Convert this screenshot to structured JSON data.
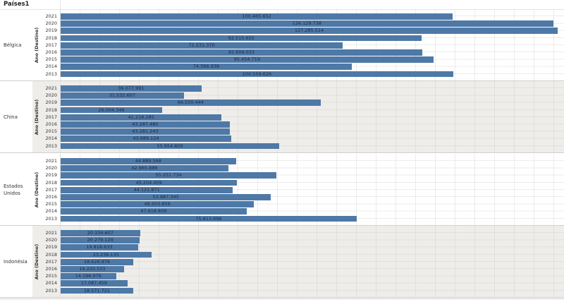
{
  "header": {
    "title": "Países1"
  },
  "axis": {
    "row_title": "Ano (Destino)"
  },
  "colors": {
    "bar": "#4e79a7",
    "label": "#1d2740",
    "band": "#efedea"
  },
  "chart_data": {
    "type": "bar",
    "orientation": "horizontal",
    "title": "Países1",
    "xlabel": "",
    "ylabel": "Ano (Destino)",
    "xlim": [
      0,
      128500000
    ],
    "grid": true,
    "legend": null,
    "categories": [
      "2021",
      "2020",
      "2019",
      "2018",
      "2017",
      "2016",
      "2015",
      "2014",
      "2013"
    ],
    "panels": [
      {
        "country": "Bélgica",
        "values": [
          100465652,
          126129738,
          127285514,
          92515655,
          72231370,
          92609033,
          95454719,
          74566938,
          100559626
        ],
        "labels": [
          "100.465.652",
          "126.129.738",
          "127.285.514",
          "92.515.655",
          "72.231.370",
          "92.609.033",
          "95.454.719",
          "74.566.938",
          "100.559.626"
        ]
      },
      {
        "country": "China",
        "values": [
          36077991,
          31532607,
          66550444,
          26004346,
          41218285,
          43287480,
          43281243,
          43689124,
          55954809
        ],
        "labels": [
          "36.077.991",
          "31.532.607",
          "66.550.444",
          "26.004.346",
          "41.218.285",
          "43.287.480",
          "43.281.243",
          "43.689.124",
          "55.954.809"
        ]
      },
      {
        "country": "Estados Unidos",
        "values": [
          44889568,
          42965886,
          55251734,
          45204459,
          44121871,
          53887345,
          49503856,
          47618809,
          75813696
        ],
        "labels": [
          "44.889.568",
          "42.965.886",
          "55.251.734",
          "45.204.459",
          "44.121.871",
          "53.887.345",
          "49.503.856",
          "47.618.809",
          "75.813.696"
        ]
      },
      {
        "country": "Indonésia",
        "values": [
          20334607,
          20279129,
          19818633,
          23236135,
          18626976,
          16220533,
          14196976,
          17087459,
          18571721
        ],
        "labels": [
          "20.334.607",
          "20.279.129",
          "19.818.633",
          "23.236.135",
          "18.626.976",
          "16.220.533",
          "14.196.976",
          "17.087.459",
          "18.571.721"
        ]
      }
    ]
  }
}
